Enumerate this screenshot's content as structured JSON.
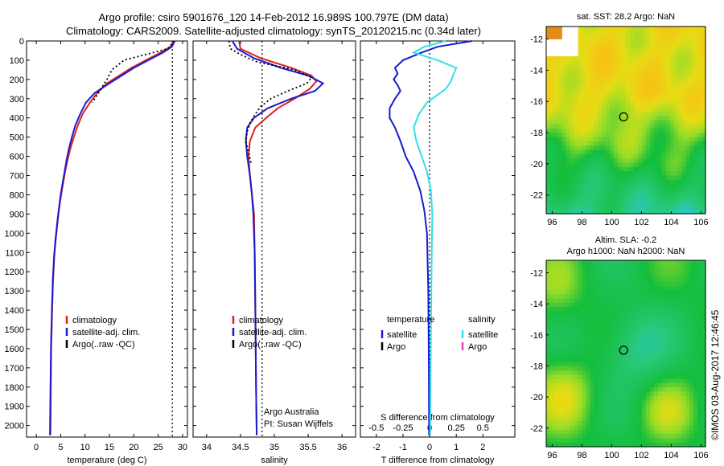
{
  "header": {
    "line1": "Argo profile: csiro 5901676_120 14-Feb-2012 16.989S 100.797E (DM data)",
    "line2": "Climatology: CARS2009. Satellite-adjusted climatology: synTS_20120215.nc (0.34d later)"
  },
  "colors": {
    "climatology": "#e02020",
    "satellite": "#1a1ad0",
    "argo": "#000000",
    "sal_satellite": "#30e0e8",
    "sal_argo": "#e040c0"
  },
  "chart_data": [
    {
      "type": "line",
      "name": "temperature-panel",
      "xlabel": "temperature (deg C)",
      "xlim": [
        -2,
        31
      ],
      "ylim": [
        2060,
        0
      ],
      "xticks": [
        0,
        5,
        10,
        15,
        20,
        25,
        30
      ],
      "yticks": [
        0,
        100,
        200,
        300,
        400,
        500,
        600,
        700,
        800,
        900,
        1000,
        1100,
        1200,
        1300,
        1400,
        1500,
        1600,
        1700,
        1800,
        1900,
        2000
      ],
      "vline": 27.9,
      "legend": [
        "climatology",
        "satellite-adj. clim.",
        "Argo(..raw -QC)"
      ],
      "series": [
        {
          "name": "climatology",
          "style": "solid",
          "color": "#e02020",
          "x": [
            28.2,
            27.5,
            25.5,
            22.5,
            19.5,
            17,
            14.5,
            12.5,
            11,
            9.5,
            8.5,
            7.7,
            7,
            6.4,
            5.9,
            5.5,
            5.1,
            4.75,
            4.45,
            4.2,
            3.95,
            3.7,
            3.45,
            3.25,
            3.05,
            2.9
          ],
          "y": [
            0,
            30,
            60,
            100,
            140,
            180,
            220,
            270,
            320,
            380,
            440,
            500,
            560,
            620,
            680,
            740,
            800,
            860,
            920,
            980,
            1040,
            1120,
            1240,
            1400,
            1600,
            2050
          ]
        },
        {
          "name": "satellite-adj. clim.",
          "style": "solid",
          "color": "#1a1ad0",
          "x": [
            28.4,
            27.8,
            26,
            23,
            20,
            17.5,
            15,
            12,
            10.2,
            9,
            8,
            7.3,
            6.7,
            6.2,
            5.8,
            5.4,
            5.0,
            4.7,
            4.4,
            4.15,
            3.9,
            3.65,
            3.4,
            3.2,
            3.0,
            2.8
          ],
          "y": [
            0,
            30,
            60,
            100,
            140,
            180,
            220,
            270,
            320,
            380,
            440,
            500,
            560,
            620,
            680,
            740,
            800,
            860,
            920,
            980,
            1040,
            1120,
            1240,
            1400,
            1600,
            2050
          ]
        },
        {
          "name": "Argo(..raw -QC)",
          "style": "dotted",
          "color": "#000000",
          "x": [
            28.3,
            27,
            18,
            15.5,
            14.5,
            13.5,
            12.5,
            11.5
          ],
          "y": [
            0,
            40,
            100,
            150,
            200,
            240,
            280,
            320
          ]
        }
      ]
    },
    {
      "type": "line",
      "name": "salinity-panel",
      "xlabel": "salinity",
      "xlim": [
        33.8,
        36.2
      ],
      "ylim": [
        2060,
        0
      ],
      "xticks": [
        34,
        34.5,
        35,
        35.5,
        36
      ],
      "vline": 34.82,
      "legend": [
        "climatology",
        "satellite-adj. clim.",
        "Argo(..raw -QC)"
      ],
      "annotation": [
        "Argo Australia",
        "PI: Susan Wijffels"
      ],
      "series": [
        {
          "name": "climatology",
          "style": "solid",
          "color": "#e02020",
          "x": [
            34.48,
            34.5,
            34.8,
            35.25,
            35.55,
            35.62,
            35.52,
            35.3,
            35.05,
            34.88,
            34.72,
            34.64,
            34.62,
            34.64,
            34.67,
            34.7,
            34.71,
            34.72,
            34.73,
            34.74
          ],
          "y": [
            0,
            40,
            90,
            140,
            180,
            210,
            250,
            300,
            350,
            400,
            450,
            520,
            600,
            700,
            800,
            900,
            1100,
            1400,
            1800,
            2050
          ]
        },
        {
          "name": "satellite-adj. clim.",
          "style": "solid",
          "color": "#1a1ad0",
          "x": [
            34.38,
            34.45,
            34.7,
            35.1,
            35.5,
            35.72,
            35.6,
            35.25,
            34.9,
            34.7,
            34.6,
            34.58,
            34.6,
            34.64,
            34.67,
            34.69,
            34.71,
            34.72,
            34.73,
            34.74
          ],
          "y": [
            0,
            40,
            90,
            140,
            180,
            220,
            260,
            300,
            350,
            400,
            450,
            520,
            600,
            700,
            800,
            900,
            1100,
            1400,
            1800,
            2050
          ]
        },
        {
          "name": "Argo(..raw -QC)",
          "style": "dotted",
          "color": "#000000",
          "x": [
            34.33,
            34.35,
            34.5,
            34.75,
            35.3,
            35.55,
            35.48,
            35.2,
            34.95,
            34.8,
            34.72,
            34.65,
            34.6,
            34.58,
            34.62,
            34.66
          ],
          "y": [
            0,
            40,
            70,
            110,
            150,
            190,
            220,
            260,
            300,
            340,
            380,
            420,
            470,
            520,
            580,
            640
          ]
        }
      ]
    },
    {
      "type": "line",
      "name": "difference-panel",
      "xlabel": "T difference from climatology",
      "xlabel_top": "S difference from climatology",
      "xlim": [
        -2.6,
        3.2
      ],
      "ylim": [
        2060,
        0
      ],
      "xticks": [
        -2,
        -1,
        0,
        1,
        2
      ],
      "xticks_top_labels": [
        "-0.5",
        "-0.25",
        "0",
        "0.25",
        "0.5"
      ],
      "xticks_top_pos": [
        -2,
        -1,
        0,
        1,
        2
      ],
      "vline": 0,
      "legend_temperature": [
        "temperature",
        "satellite",
        "Argo"
      ],
      "legend_salinity": [
        "salinity",
        "satellite",
        "Argo"
      ],
      "series": [
        {
          "name": "temperature satellite",
          "style": "solid",
          "color": "#1a1ad0",
          "x": [
            1.6,
            0.3,
            -0.3,
            -1.0,
            -1.3,
            -1.2,
            -1.35,
            -1.2,
            -1.1,
            -1.3,
            -1.5,
            -1.5,
            -1.3,
            -1.1,
            -0.9,
            -0.6,
            -0.35,
            -0.2,
            -0.1,
            -0.05,
            -0.03,
            -0.02
          ],
          "y": [
            0,
            30,
            60,
            100,
            140,
            170,
            200,
            230,
            260,
            300,
            350,
            400,
            450,
            520,
            600,
            680,
            780,
            880,
            1000,
            1300,
            1700,
            2050
          ]
        },
        {
          "name": "salinity satellite",
          "style": "solid",
          "color": "#30e0e8",
          "x": [
            0.6,
            -0.2,
            -0.6,
            0.3,
            1.0,
            0.9,
            0.8,
            0.6,
            0.3,
            -0.1,
            -0.4,
            -0.6,
            -0.5,
            -0.3,
            -0.1,
            0.05,
            0.1,
            0.08,
            0.05,
            0.02
          ],
          "y": [
            0,
            30,
            60,
            100,
            140,
            170,
            210,
            250,
            280,
            320,
            380,
            450,
            520,
            600,
            680,
            780,
            900,
            1100,
            1500,
            2050
          ]
        }
      ]
    },
    {
      "type": "heatmap",
      "name": "sst-map",
      "title": "sat. SST: 28.2 Argo: NaN",
      "xlim": [
        95.6,
        106.3
      ],
      "ylim": [
        -23.2,
        -11.2
      ],
      "xticks": [
        96,
        98,
        100,
        102,
        104,
        106
      ],
      "yticks": [
        -12,
        -14,
        -16,
        -18,
        -20,
        -22
      ],
      "marker": {
        "lon": 100.797,
        "lat": -16.989
      }
    },
    {
      "type": "heatmap",
      "name": "sla-map",
      "title_line1": "Altim. SLA: -0.2",
      "title_line2": "Argo h1000: NaN h2000: NaN",
      "xlim": [
        95.6,
        106.3
      ],
      "ylim": [
        -23.2,
        -11.2
      ],
      "xticks": [
        96,
        98,
        100,
        102,
        104,
        106
      ],
      "yticks": [
        -12,
        -14,
        -16,
        -18,
        -20,
        -22
      ],
      "marker": {
        "lon": 100.797,
        "lat": -16.989
      }
    }
  ],
  "footer": {
    "timestamp": "©IMOS 03-Aug-2017 12:46:45"
  }
}
